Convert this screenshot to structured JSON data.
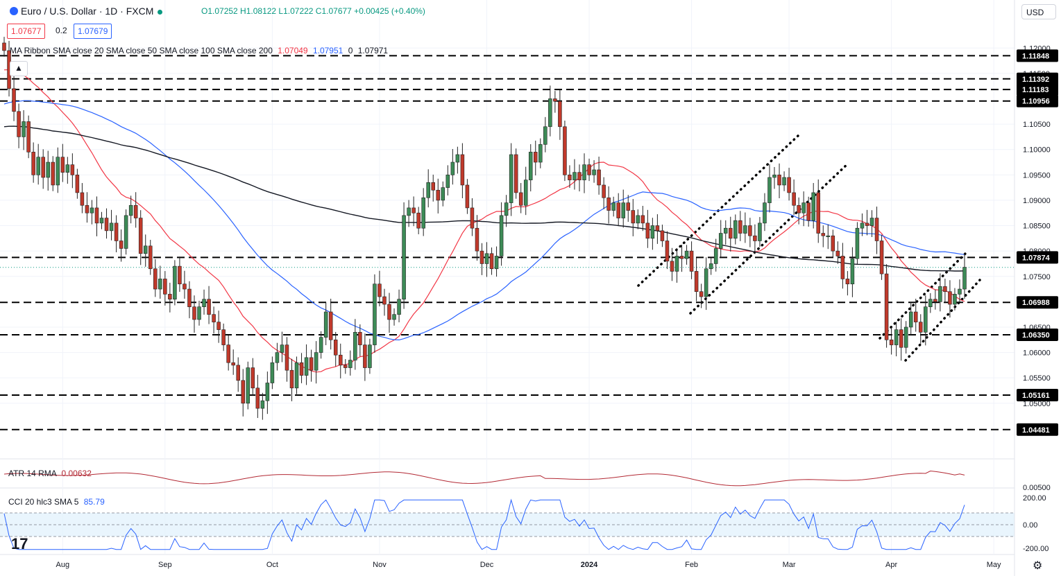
{
  "header": {
    "symbol": "Euro / U.S. Dollar · 1D · FXCM",
    "ohlc": "O1.07252 H1.08122 L1.07222 C1.07677 +0.00425 (+0.40%)",
    "bid": "1.07677",
    "spread": "0.2",
    "ask": "1.07679",
    "currency": "USD"
  },
  "legends": {
    "ma_ribbon": "MA Ribbon SMA close 20 SMA close 50 SMA close 100 SMA close 200",
    "ma_v1": "1.07049",
    "ma_v2": "1.07951",
    "ma_v3": "0",
    "ma_v4": "1.07971",
    "atr": "ATR 14 RMA",
    "atr_value": "0.00632",
    "cci": "CCI 20 hlc3 SMA 5",
    "cci_value": "85.79"
  },
  "chart_data": {
    "type": "candlestick",
    "title": "Euro / U.S. Dollar · 1D · FXCM",
    "x_labels": [
      "Aug",
      "Sep",
      "Oct",
      "Nov",
      "Dec",
      "2024",
      "Feb",
      "Mar",
      "Apr",
      "May"
    ],
    "y_ticks": [
      "1.12000",
      "1.11500",
      "1.10500",
      "1.10000",
      "1.09500",
      "1.09000",
      "1.08500",
      "1.08000",
      "1.07500",
      "1.06500",
      "1.06000",
      "1.05500",
      "1.05000"
    ],
    "ylim": [
      1.04,
      1.124
    ],
    "horizontal_levels": [
      "1.11848",
      "1.11392",
      "1.11183",
      "1.10956",
      "1.07874",
      "1.06988",
      "1.06350",
      "1.05161",
      "1.04481"
    ],
    "current_price": 1.07677,
    "closes": [
      1.1195,
      1.112,
      1.1075,
      1.1025,
      1.1055,
      1.0995,
      1.095,
      1.0985,
      1.0945,
      1.0975,
      1.093,
      1.0985,
      1.0955,
      1.097,
      1.095,
      1.0915,
      1.089,
      1.0875,
      1.0885,
      1.0855,
      1.0865,
      1.084,
      1.0855,
      1.082,
      1.0805,
      1.087,
      1.089,
      1.0865,
      1.0795,
      1.081,
      1.0765,
      1.0725,
      1.0745,
      1.0715,
      1.0705,
      1.077,
      1.0735,
      1.0725,
      1.069,
      1.0665,
      1.069,
      1.0705,
      1.0675,
      1.066,
      1.0645,
      1.0615,
      1.058,
      1.0575,
      1.0545,
      1.05,
      1.057,
      1.053,
      1.049,
      1.0505,
      1.054,
      1.058,
      1.06,
      1.0615,
      1.0565,
      1.053,
      1.058,
      1.0555,
      1.059,
      1.0565,
      1.06,
      1.063,
      1.068,
      1.0625,
      1.0595,
      1.0575,
      1.057,
      1.0585,
      1.064,
      1.0615,
      1.057,
      1.0615,
      1.0735,
      1.071,
      1.0695,
      1.0665,
      1.0675,
      1.0705,
      1.087,
      1.0885,
      1.0875,
      1.0845,
      1.0905,
      1.0935,
      1.092,
      1.09,
      1.0925,
      1.095,
      1.0975,
      1.099,
      1.093,
      1.0885,
      1.0845,
      1.08,
      1.0775,
      1.0795,
      1.0765,
      1.079,
      1.087,
      1.0895,
      1.099,
      1.0915,
      1.089,
      1.094,
      1.0995,
      1.0975,
      1.101,
      1.1045,
      1.11,
      1.1095,
      1.1045,
      1.095,
      1.094,
      1.0955,
      1.094,
      1.097,
      1.095,
      1.096,
      1.093,
      1.0905,
      1.088,
      1.0895,
      1.0865,
      1.0895,
      1.088,
      1.0855,
      1.087,
      1.0855,
      1.0825,
      1.085,
      1.084,
      1.082,
      1.078,
      1.076,
      1.079,
      1.0785,
      1.08,
      1.076,
      1.072,
      1.071,
      1.0765,
      1.0775,
      1.0805,
      1.0835,
      1.0845,
      1.0825,
      1.086,
      1.0835,
      1.085,
      1.083,
      1.082,
      1.0855,
      1.0895,
      1.0945,
      1.095,
      1.093,
      1.0945,
      1.0915,
      1.089,
      1.0875,
      1.0895,
      1.086,
      1.0915,
      1.0835,
      1.083,
      1.083,
      1.08,
      1.079,
      1.0745,
      1.0735,
      1.0785,
      1.0845,
      1.0855,
      1.085,
      1.0865,
      1.082,
      1.0755,
      1.0625,
      1.0615,
      1.0645,
      1.061,
      1.065,
      1.068,
      1.066,
      1.064,
      1.069,
      1.0705,
      1.07,
      1.073,
      1.072,
      1.0695,
      1.0715,
      1.0725,
      1.0768
    ]
  }
}
